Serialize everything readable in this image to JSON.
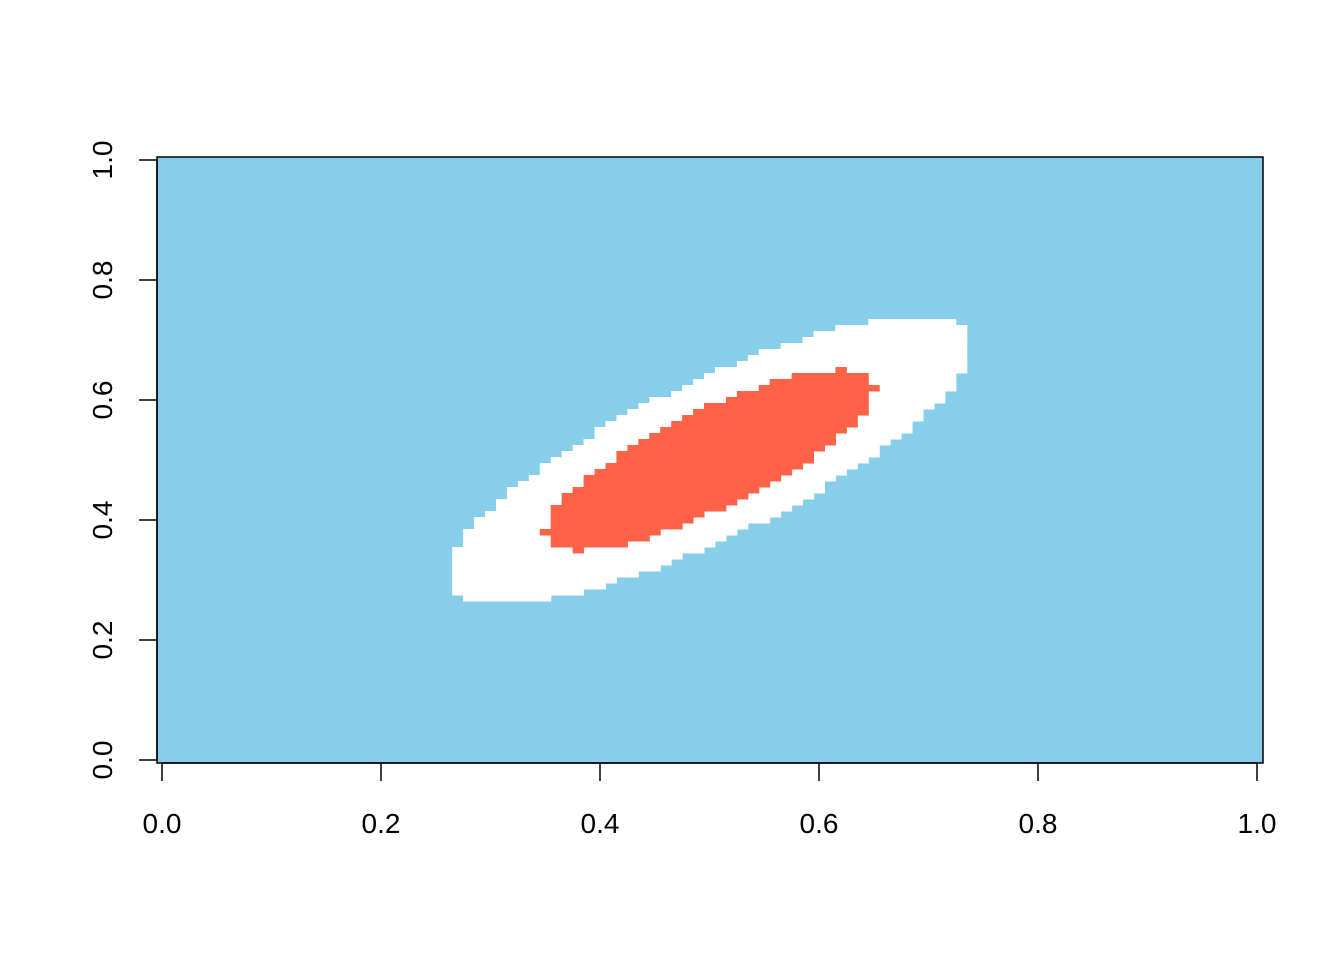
{
  "chart_data": {
    "type": "heatmap",
    "title": "",
    "xlabel": "",
    "ylabel": "",
    "xlim": [
      0,
      1
    ],
    "ylim": [
      0,
      1
    ],
    "xticks": [
      "0.0",
      "0.2",
      "0.4",
      "0.6",
      "0.8",
      "1.0"
    ],
    "yticks": [
      "0.0",
      "0.2",
      "0.4",
      "0.6",
      "0.8",
      "1.0"
    ],
    "grid": false,
    "legend": "none",
    "grid_resolution": 101,
    "colors": {
      "background": "#87CEEB",
      "outer_region": "#FFFFFF",
      "inner_region": "#FF6347",
      "axis": "#000000"
    },
    "regions": [
      {
        "fill": "#FFFFFF",
        "center": [
          0.5,
          0.5
        ],
        "correlation": 0.8,
        "x_extent": [
          0.26,
          0.74
        ],
        "y_extent": [
          0.26,
          0.74
        ]
      },
      {
        "fill": "#FF6347",
        "center": [
          0.5,
          0.5
        ],
        "correlation": 0.8,
        "x_extent": [
          0.35,
          0.65
        ],
        "y_extent": [
          0.35,
          0.65
        ]
      }
    ]
  }
}
